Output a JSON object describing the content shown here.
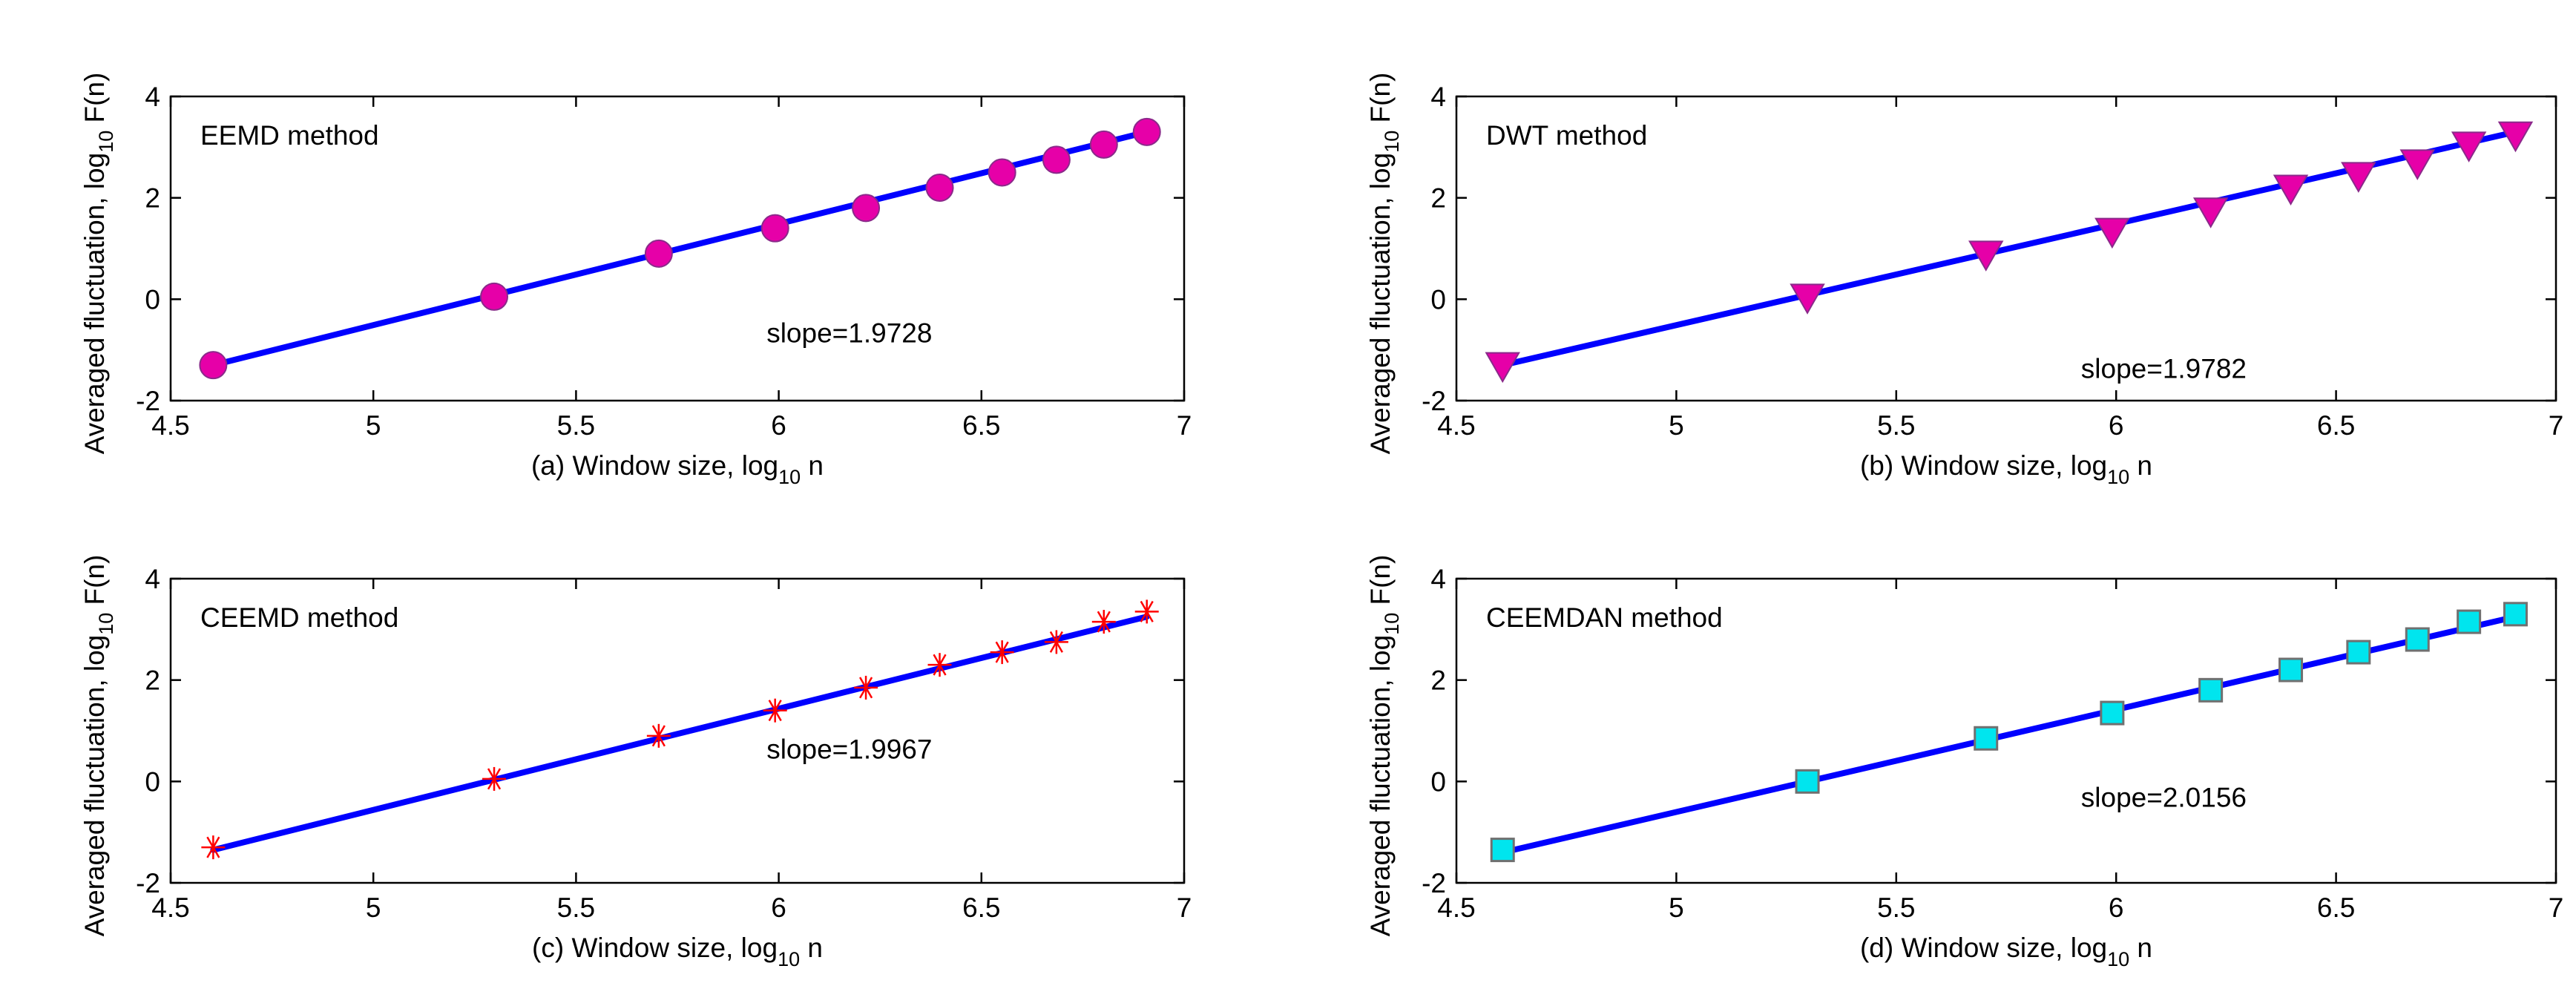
{
  "chart_data": [
    {
      "type": "scatter",
      "panel": "a",
      "marker": "circle",
      "marker_color": "#e600a8",
      "line_color": "#0000ff",
      "method_label": "EEMD  method",
      "slope_label": "slope=1.9728",
      "xlabel_main": "(a) Window size, log",
      "xlabel_sub": "10",
      "xlabel_end": " n",
      "ylabel_main": "Averaged fluctuation, log",
      "ylabel_sub": "10",
      "ylabel_end": " F(n)",
      "xlim": [
        4.5,
        7
      ],
      "ylim": [
        -2,
        4
      ],
      "xticks": [
        "4.5",
        "5",
        "5.5",
        "6",
        "6.5",
        "7"
      ],
      "yticks": [
        "-2",
        "0",
        "2",
        "4"
      ],
      "x": [
        4.605,
        5.298,
        5.704,
        5.991,
        6.215,
        6.397,
        6.551,
        6.685,
        6.802,
        6.908
      ],
      "y": [
        -1.3,
        0.05,
        0.9,
        1.4,
        1.8,
        2.2,
        2.5,
        2.75,
        3.05,
        3.3
      ],
      "fit": [
        [
          4.605,
          -1.3
        ],
        [
          6.908,
          3.3
        ]
      ]
    },
    {
      "type": "scatter",
      "panel": "b",
      "marker": "triangle-down",
      "marker_color": "#e600a8",
      "line_color": "#0000ff",
      "method_label": "DWT  method",
      "slope_label": "slope=1.9782",
      "xlabel_main": "(b) Window size, log",
      "xlabel_sub": "10",
      "xlabel_end": " n",
      "ylabel_main": "Averaged fluctuation, log",
      "ylabel_sub": "10",
      "ylabel_end": " F(n)",
      "xlim": [
        4.5,
        7
      ],
      "ylim": [
        -2,
        4
      ],
      "xticks": [
        "4.5",
        "5",
        "5.5",
        "6",
        "6.5",
        "7"
      ],
      "yticks": [
        "-2",
        "0",
        "2",
        "4"
      ],
      "x": [
        4.605,
        5.298,
        5.704,
        5.991,
        6.215,
        6.397,
        6.551,
        6.685,
        6.802,
        6.908
      ],
      "y": [
        -1.3,
        0.05,
        0.9,
        1.35,
        1.75,
        2.2,
        2.45,
        2.7,
        3.05,
        3.25
      ],
      "fit": [
        [
          4.605,
          -1.3
        ],
        [
          6.908,
          3.3
        ]
      ]
    },
    {
      "type": "scatter",
      "panel": "c",
      "marker": "asterisk",
      "marker_color": "#ff0000",
      "line_color": "#0000ff",
      "method_label": "CEEMD  method",
      "slope_label": "slope=1.9967",
      "xlabel_main": "(c) Window size, log",
      "xlabel_sub": "10",
      "xlabel_end": " n",
      "ylabel_main": "Averaged fluctuation, log",
      "ylabel_sub": "10",
      "ylabel_end": " F(n)",
      "xlim": [
        4.5,
        7
      ],
      "ylim": [
        -2,
        4
      ],
      "xticks": [
        "4.5",
        "5",
        "5.5",
        "6",
        "6.5",
        "7"
      ],
      "yticks": [
        "-2",
        "0",
        "2",
        "4"
      ],
      "x": [
        4.605,
        5.298,
        5.704,
        5.991,
        6.215,
        6.397,
        6.551,
        6.685,
        6.802,
        6.908
      ],
      "y": [
        -1.3,
        0.05,
        0.9,
        1.4,
        1.85,
        2.3,
        2.55,
        2.75,
        3.15,
        3.35
      ],
      "fit": [
        [
          4.605,
          -1.35
        ],
        [
          6.908,
          3.25
        ]
      ]
    },
    {
      "type": "scatter",
      "panel": "d",
      "marker": "square",
      "marker_color": "#00e5ee",
      "line_color": "#0000ff",
      "method_label": "CEEMDAN  method",
      "slope_label": "slope=2.0156",
      "xlabel_main": "(d) Window size, log",
      "xlabel_sub": "10",
      "xlabel_end": " n",
      "ylabel_main": "Averaged fluctuation, log",
      "ylabel_sub": "10",
      "ylabel_end": " F(n)",
      "xlim": [
        4.5,
        7
      ],
      "ylim": [
        -2,
        4
      ],
      "xticks": [
        "4.5",
        "5",
        "5.5",
        "6",
        "6.5",
        "7"
      ],
      "yticks": [
        "-2",
        "0",
        "2",
        "4"
      ],
      "x": [
        4.605,
        5.298,
        5.704,
        5.991,
        6.215,
        6.397,
        6.551,
        6.685,
        6.802,
        6.908
      ],
      "y": [
        -1.35,
        0.0,
        0.85,
        1.35,
        1.8,
        2.2,
        2.55,
        2.8,
        3.15,
        3.3
      ],
      "fit": [
        [
          4.605,
          -1.4
        ],
        [
          6.908,
          3.25
        ]
      ]
    }
  ]
}
